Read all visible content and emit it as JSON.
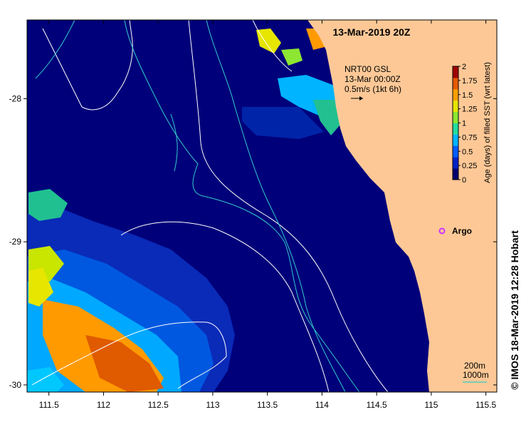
{
  "title": "13-Mar-2019 20Z",
  "x_axis": {
    "ticks": [
      "111.5",
      "112",
      "112.5",
      "113",
      "113.5",
      "114",
      "114.5",
      "115",
      "115.5"
    ],
    "range": [
      111.3,
      115.6
    ]
  },
  "y_axis": {
    "ticks": [
      "-28",
      "-29",
      "-30"
    ],
    "range": [
      -27.45,
      -30.05
    ]
  },
  "current_key": {
    "line1": "NRT00 GSL",
    "line2": "13-Mar 00:00Z",
    "line3": "0.5m/s (1kt 6h)"
  },
  "argo_label": "Argo",
  "colorbar": {
    "label": "Age (days) of filled SST (wrt latest)",
    "ticks": [
      "2",
      "1.75",
      "1.5",
      "1.25",
      "1",
      "0.75",
      "0.5",
      "0.25",
      "0"
    ],
    "colors": [
      "#00006e",
      "#0022c8",
      "#005eff",
      "#00b4ff",
      "#22dca0",
      "#8ce632",
      "#e6e600",
      "#ffa000",
      "#e65a00",
      "#a00000"
    ]
  },
  "depth_legend": {
    "line1": "200m",
    "line2": "1000m",
    "colors": {
      "200m": "#ffffff",
      "1000m": "#33cccc"
    }
  },
  "credit": "© IMOS 18-Mar-2019 12:28 Hobart",
  "colors": {
    "ocean": "#00007a",
    "land": "#fdc896",
    "contour_200m": "#ffffff",
    "contour_1000m": "#33cccc",
    "argo": "#cc33ff"
  }
}
